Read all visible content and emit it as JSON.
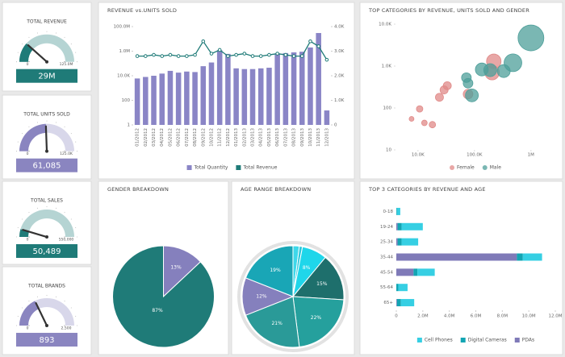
{
  "chart_data": [
    {
      "type": "gauge",
      "title": "TOTAL REVENUE",
      "values": [
        29000000
      ],
      "value_labels": [
        "29M"
      ],
      "ylim": [
        0,
        125000000
      ],
      "yticks": [
        0,
        {
          "value": 125000000,
          "label": "125.0M"
        }
      ],
      "color": "#1f7b78"
    },
    {
      "type": "gauge",
      "title": "TOTAL UNITS SOLD",
      "values": [
        61085
      ],
      "value_labels": [
        "61,085"
      ],
      "ylim": [
        0,
        125000
      ],
      "yticks": [
        0,
        {
          "value": 125000,
          "label": "125.0K"
        }
      ],
      "color": "#8a85c0"
    },
    {
      "type": "gauge",
      "title": "TOTAL SALES",
      "values": [
        50489
      ],
      "value_labels": [
        "50,489"
      ],
      "ylim": [
        0,
        550000
      ],
      "yticks": [
        0,
        {
          "value": 550000,
          "label": "550,000"
        }
      ],
      "color": "#1f7b78"
    },
    {
      "type": "gauge",
      "title": "TOTAL BRANDS",
      "values": [
        893
      ],
      "value_labels": [
        "893"
      ],
      "ylim": [
        0,
        2500
      ],
      "yticks": [
        0,
        {
          "value": 2500,
          "label": "2,500"
        }
      ],
      "color": "#8a85c0"
    },
    {
      "type": "combo",
      "title": "REVENUE vs.UNITS SOLD",
      "categories": [
        "01/2012",
        "02/2012",
        "03/2012",
        "04/2012",
        "05/2012",
        "06/2012",
        "07/2012",
        "08/2012",
        "09/2012",
        "10/2012",
        "11/2012",
        "12/2012",
        "01/2013",
        "02/2013",
        "03/2013",
        "04/2013",
        "05/2013",
        "06/2013",
        "07/2013",
        "08/2013",
        "09/2013",
        "10/2013",
        "11/2013",
        "12/2013"
      ],
      "series": [
        {
          "name": "Total Quantity",
          "type": "bar",
          "color": "#8a85c6",
          "values": [
            6000,
            8000,
            10000,
            15000,
            25000,
            18000,
            22000,
            20000,
            60000,
            120000,
            1200000,
            600000,
            40000,
            35000,
            35000,
            40000,
            45000,
            600000,
            700000,
            800000,
            900000,
            2000000,
            30000000,
            15
          ]
        },
        {
          "name": "Total Revenue",
          "type": "line",
          "axis": "y2",
          "color": "#1f7b78",
          "values": [
            2800,
            2800,
            2850,
            2800,
            2850,
            2800,
            2800,
            2850,
            3400,
            2900,
            3050,
            2800,
            2850,
            2900,
            2800,
            2800,
            2850,
            2900,
            2850,
            2800,
            2800,
            3400,
            3200,
            2650
          ]
        }
      ],
      "log_y": true,
      "ylim": [
        1,
        100000000
      ],
      "yticks": [
        1,
        100,
        {
          "value": 10000,
          "label": "10.0K"
        },
        {
          "value": 1000000,
          "label": "1.0M"
        },
        {
          "value": 100000000,
          "label": "100.0M"
        }
      ],
      "y2lim": [
        0,
        4000
      ],
      "y2ticks": [
        0,
        {
          "value": 1000,
          "label": "1.0K"
        },
        {
          "value": 2000,
          "label": "2.0K"
        },
        {
          "value": 3000,
          "label": "3.0K"
        },
        {
          "value": 4000,
          "label": "4.0K"
        }
      ],
      "legend": "bottom"
    },
    {
      "type": "scatter",
      "title": "TOP CATEGORIES BY REVENUE, UNITS SOLD AND GENDER",
      "series": [
        {
          "name": "Female",
          "color": "#e08a88",
          "x": [
            7700,
            10700,
            13000,
            18000,
            24000,
            29000,
            33000,
            77000,
            220000,
            205000
          ],
          "values": [
            55,
            95,
            44,
            40,
            180,
            270,
            340,
            215,
            1300,
            700
          ],
          "sizes": [
            9,
            16,
            12,
            16,
            25,
            25,
            25,
            36,
            81,
            81
          ]
        },
        {
          "name": "Male",
          "color": "#4d9f9a",
          "x": [
            72000,
            77000,
            90000,
            135000,
            190000,
            330000,
            480000,
            1000000
          ],
          "values": [
            530,
            390,
            200,
            830,
            800,
            760,
            1200,
            4700
          ],
          "sizes": [
            36,
            36,
            64,
            64,
            64,
            64,
            121,
            256
          ]
        }
      ],
      "log_x": true,
      "log_y": true,
      "xlim": [
        4000,
        2700000
      ],
      "ylim": [
        10,
        10000
      ],
      "xticks": [
        {
          "value": 10000,
          "label": "10.0K"
        },
        {
          "value": 100000,
          "label": "100.0K"
        },
        {
          "value": 1000000,
          "label": "1M"
        }
      ],
      "yticks": [
        10,
        100,
        {
          "value": 1000,
          "label": "1.0K"
        },
        {
          "value": 10000,
          "label": "10.0K"
        }
      ],
      "legend": "bottom"
    },
    {
      "type": "pie",
      "title": "GENDER BREAKDOWN",
      "values": [
        13,
        87
      ],
      "value_labels": [
        "13%",
        "87%"
      ],
      "colors": [
        "#8580bd",
        "#1f7b78"
      ]
    },
    {
      "type": "pie",
      "title": "AGE RANGE BREAKDOWN",
      "values": [
        2,
        1,
        8,
        15,
        22,
        21,
        12,
        19
      ],
      "value_labels": [
        null,
        null,
        "8%",
        "15%",
        "22%",
        "21%",
        "12%",
        "19%"
      ],
      "colors": [
        "#3ed8ea",
        "#2cc6da",
        "#1fd6ea",
        "#1e6f6c",
        "#25a09d",
        "#2a9a98",
        "#8580bd",
        "#19a6b6"
      ]
    },
    {
      "type": "bar",
      "orientation": "horizontal",
      "stacked": true,
      "title": "TOP 3 CATEGORIES BY REVENUE AND AGE",
      "categories": [
        "0-18",
        "19-24",
        "25-34",
        "35-44",
        "45-54",
        "55-64",
        "65+"
      ],
      "series": [
        {
          "name": "Cell Phones",
          "color": "#36cfe3",
          "values": [
            250000,
            1600000,
            1250000,
            1450000,
            1300000,
            700000,
            1000000
          ]
        },
        {
          "name": "Digital Cameras",
          "color": "#12a5b3",
          "values": [
            50000,
            300000,
            300000,
            450000,
            300000,
            150000,
            300000
          ]
        },
        {
          "name": "PDAs",
          "color": "#7f7ab8",
          "values": [
            0,
            100000,
            100000,
            9100000,
            1300000,
            0,
            50000
          ]
        }
      ],
      "stack_order": [
        2,
        1,
        0
      ],
      "xlim": [
        0,
        12000000
      ],
      "xticks": [
        0,
        {
          "value": 2000000,
          "label": "2.0M"
        },
        {
          "value": 4000000,
          "label": "4.0M"
        },
        {
          "value": 6000000,
          "label": "6.0M"
        },
        {
          "value": 8000000,
          "label": "8.0M"
        },
        {
          "value": 10000000,
          "label": "10.0M"
        },
        {
          "value": 12000000,
          "label": "12.0M"
        }
      ],
      "legend": "bottom"
    }
  ]
}
